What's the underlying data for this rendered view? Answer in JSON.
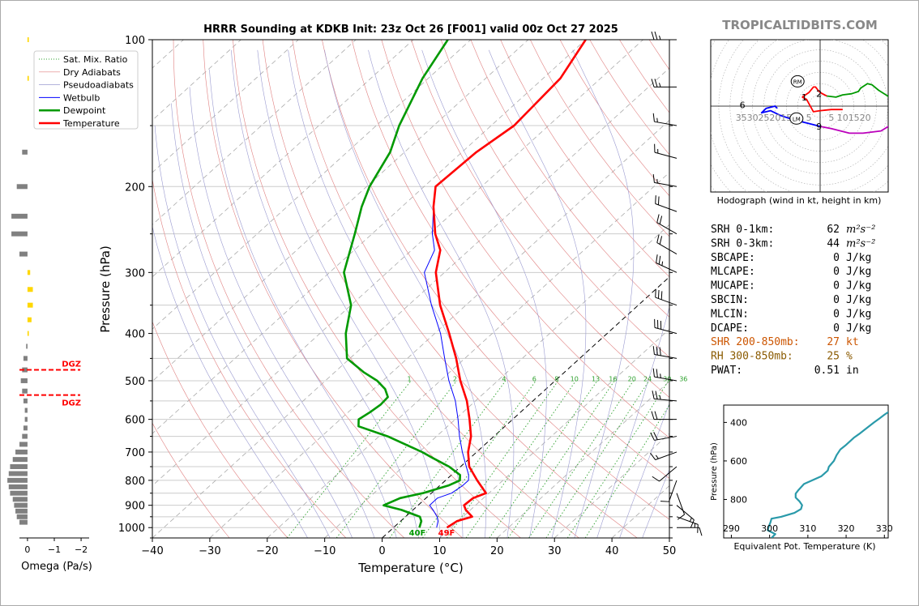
{
  "header": {
    "title": "HRRR Sounding at KDKB Init: 23z Oct 26 [F001] valid 00z Oct 27 2025",
    "watermark": "TROPICALTIDBITS.COM"
  },
  "legend": {
    "placement": "top-left",
    "entries": [
      {
        "label": "Sat. Mix. Ratio",
        "color": "#2ca02c",
        "style": "dotted"
      },
      {
        "label": "Dry Adiabats",
        "color": "#e08080",
        "style": "solid-thin"
      },
      {
        "label": "Pseudoadiabats",
        "color": "#9a9ad0",
        "style": "solid-thin"
      },
      {
        "label": "Wetbulb",
        "color": "#0000ff",
        "style": "solid"
      },
      {
        "label": "Dewpoint",
        "color": "#009900",
        "style": "solid-thick"
      },
      {
        "label": "Temperature",
        "color": "#ff0000",
        "style": "solid-thick"
      }
    ]
  },
  "colors": {
    "temperature": "#ff0000",
    "dewpoint": "#009900",
    "wetbulb": "#0000ff",
    "mixratio": "#2ca02c",
    "dry_adiabat": "#e08080",
    "moist_adiabat": "#9a9ad0",
    "hodo_0_1": "#ff0000",
    "hodo_1_3": "#ff0000",
    "hodo_3_6": "#009900",
    "hodo_6_9": "#bb00bb",
    "hodo_9_12": "#0000ff",
    "theta_e": "#2a9aaa",
    "omega_pos": "#808080",
    "omega_neg": "#ffd700",
    "shr_label": "#cc5500",
    "rh_label": "#8a5a00"
  },
  "chart_data": [
    {
      "type": "line",
      "subtype": "skew-t log-p",
      "title": "HRRR Sounding at KDKB Init: 23z Oct 26 [F001] valid 00z Oct 27 2025",
      "xlabel": "Temperature (°C)",
      "ylabel": "Pressure (hPa)",
      "xlim": [
        -40,
        50
      ],
      "ylim": [
        1050,
        100
      ],
      "y_scale": "log",
      "grid": true,
      "x_ticks": [
        "−40",
        "−30",
        "−20",
        "−10",
        "0",
        "10",
        "20",
        "30",
        "40",
        "50"
      ],
      "y_ticks": [
        "100",
        "200",
        "300",
        "400",
        "500",
        "600",
        "700",
        "800",
        "900",
        "1000"
      ],
      "mixing_ratio_labels": [
        "1",
        "2",
        "4",
        "6",
        "8",
        "10",
        "13",
        "16",
        "20",
        "24",
        "30",
        "36"
      ],
      "surface_labels": {
        "dewpoint": "40F",
        "temperature": "49F"
      },
      "series": [
        {
          "name": "Temperature",
          "pressure": [
            1000,
            970,
            950,
            920,
            900,
            870,
            850,
            800,
            750,
            700,
            650,
            600,
            550,
            500,
            450,
            400,
            350,
            300,
            270,
            250,
            220,
            200,
            170,
            150,
            120,
            100
          ],
          "temperature": [
            9.3,
            9.8,
            11.6,
            9.2,
            8.0,
            8.2,
            9.5,
            5.5,
            1.5,
            -1.5,
            -4.0,
            -7.5,
            -11.5,
            -16.5,
            -21.5,
            -27.5,
            -34.5,
            -41.5,
            -45.0,
            -49.0,
            -54.5,
            -58.0,
            -57.5,
            -56.0,
            -57.0,
            -60.0
          ]
        },
        {
          "name": "Dewpoint",
          "pressure": [
            1000,
            970,
            950,
            920,
            900,
            870,
            850,
            820,
            800,
            780,
            750,
            720,
            700,
            650,
            620,
            600,
            580,
            560,
            540,
            520,
            500,
            480,
            450,
            400,
            350,
            300,
            250,
            220,
            200,
            170,
            150,
            120,
            100
          ],
          "dewpoint": [
            4.5,
            3.6,
            2.5,
            -2.0,
            -6.0,
            -4.5,
            -1.5,
            1.5,
            2.5,
            1.5,
            -2.0,
            -6.5,
            -9.5,
            -18.5,
            -25.5,
            -26.8,
            -26.2,
            -25.8,
            -26.0,
            -28.0,
            -31.0,
            -35.0,
            -40.5,
            -45.5,
            -50.0,
            -57.5,
            -63.0,
            -67.0,
            -69.5,
            -72.5,
            -76.0,
            -81.0,
            -84.0
          ]
        },
        {
          "name": "Wetbulb",
          "pressure": [
            1000,
            970,
            950,
            920,
            900,
            870,
            850,
            820,
            800,
            780,
            750,
            700,
            650,
            600,
            550,
            500,
            450,
            400,
            350,
            300,
            270,
            250,
            220
          ],
          "temperature": [
            7.5,
            6.5,
            5.5,
            3.5,
            2.0,
            2.0,
            3.5,
            4.0,
            4.0,
            3.0,
            1.0,
            -2.5,
            -6.0,
            -9.5,
            -13.5,
            -18.5,
            -23.5,
            -29.0,
            -36.0,
            -43.5,
            -46.0,
            -49.5,
            -54.5
          ]
        }
      ],
      "wind_barbs": [
        {
          "pressure": 1000,
          "dir": 90,
          "spd": 10
        },
        {
          "pressure": 950,
          "dir": 110,
          "spd": 15
        },
        {
          "pressure": 900,
          "dir": 130,
          "spd": 15
        },
        {
          "pressure": 850,
          "dir": 160,
          "spd": 10
        },
        {
          "pressure": 800,
          "dir": 200,
          "spd": 10
        },
        {
          "pressure": 750,
          "dir": 230,
          "spd": 10
        },
        {
          "pressure": 700,
          "dir": 250,
          "spd": 15
        },
        {
          "pressure": 650,
          "dir": 260,
          "spd": 20
        },
        {
          "pressure": 600,
          "dir": 270,
          "spd": 20
        },
        {
          "pressure": 550,
          "dir": 275,
          "spd": 25
        },
        {
          "pressure": 500,
          "dir": 280,
          "spd": 25
        },
        {
          "pressure": 450,
          "dir": 280,
          "spd": 30
        },
        {
          "pressure": 400,
          "dir": 285,
          "spd": 30
        },
        {
          "pressure": 350,
          "dir": 290,
          "spd": 30
        },
        {
          "pressure": 300,
          "dir": 295,
          "spd": 25
        },
        {
          "pressure": 275,
          "dir": 300,
          "spd": 20
        },
        {
          "pressure": 250,
          "dir": 300,
          "spd": 20
        },
        {
          "pressure": 225,
          "dir": 290,
          "spd": 20
        },
        {
          "pressure": 200,
          "dir": 280,
          "spd": 15
        },
        {
          "pressure": 175,
          "dir": 285,
          "spd": 15
        },
        {
          "pressure": 150,
          "dir": 280,
          "spd": 15
        },
        {
          "pressure": 125,
          "dir": 270,
          "spd": 25
        },
        {
          "pressure": 100,
          "dir": 270,
          "spd": 25
        }
      ]
    },
    {
      "type": "bar",
      "subtype": "omega-profile",
      "xlabel": "Omega (Pa/s)",
      "x_ticks": [
        "0",
        "−1",
        "−2"
      ],
      "xlim": [
        0.3,
        -2.3
      ],
      "dgz_label": "DGZ",
      "dgz_pressures": [
        475,
        535
      ],
      "values": [
        {
          "pressure": 100,
          "omega": -0.05
        },
        {
          "pressure": 120,
          "omega": -0.05
        },
        {
          "pressure": 170,
          "omega": 0.2
        },
        {
          "pressure": 200,
          "omega": 0.4
        },
        {
          "pressure": 230,
          "omega": 0.6
        },
        {
          "pressure": 250,
          "omega": 0.6
        },
        {
          "pressure": 275,
          "omega": 0.3
        },
        {
          "pressure": 300,
          "omega": -0.1
        },
        {
          "pressure": 325,
          "omega": -0.2
        },
        {
          "pressure": 350,
          "omega": -0.2
        },
        {
          "pressure": 375,
          "omega": -0.15
        },
        {
          "pressure": 400,
          "omega": -0.05
        },
        {
          "pressure": 425,
          "omega": 0.05
        },
        {
          "pressure": 450,
          "omega": 0.15
        },
        {
          "pressure": 475,
          "omega": 0.2
        },
        {
          "pressure": 500,
          "omega": 0.25
        },
        {
          "pressure": 525,
          "omega": 0.2
        },
        {
          "pressure": 550,
          "omega": 0.15
        },
        {
          "pressure": 575,
          "omega": 0.1
        },
        {
          "pressure": 600,
          "omega": 0.1
        },
        {
          "pressure": 625,
          "omega": 0.15
        },
        {
          "pressure": 650,
          "omega": 0.2
        },
        {
          "pressure": 675,
          "omega": 0.3
        },
        {
          "pressure": 700,
          "omega": 0.45
        },
        {
          "pressure": 725,
          "omega": 0.55
        },
        {
          "pressure": 750,
          "omega": 0.65
        },
        {
          "pressure": 775,
          "omega": 0.7
        },
        {
          "pressure": 800,
          "omega": 0.75
        },
        {
          "pressure": 825,
          "omega": 0.7
        },
        {
          "pressure": 850,
          "omega": 0.65
        },
        {
          "pressure": 875,
          "omega": 0.55
        },
        {
          "pressure": 900,
          "omega": 0.5
        },
        {
          "pressure": 925,
          "omega": 0.45
        },
        {
          "pressure": 950,
          "omega": 0.4
        },
        {
          "pressure": 975,
          "omega": 0.3
        }
      ]
    },
    {
      "type": "line",
      "subtype": "hodograph",
      "xlabel": "Hodograph (wind in kt, height in km)",
      "ring_labels": [
        "35",
        "30",
        "25",
        "20",
        "15",
        "10",
        "5",
        "5",
        "10",
        "15",
        "20"
      ],
      "markers": [
        {
          "label": "RM",
          "u": 10,
          "v": 11
        },
        {
          "label": "LM",
          "u": 10.5,
          "v": -5.5
        }
      ],
      "height_labels": [
        {
          "label": "1",
          "u": 7,
          "v": 4
        },
        {
          "label": "2",
          "u": 0.5,
          "v": 5.5
        },
        {
          "label": "6",
          "u": 34.5,
          "v": 0.5
        },
        {
          "label": "9",
          "u": 0.5,
          "v": -9
        }
      ],
      "series": [
        {
          "name": "0-1 km",
          "color_key": "hodo_0_1",
          "u": [
            -10,
            -5,
            0,
            3,
            6,
            8
          ],
          "v": [
            -1.5,
            -1.5,
            -2,
            -2.5,
            3,
            4
          ]
        },
        {
          "name": "1-3 km",
          "color_key": "hodo_1_3",
          "u": [
            8,
            5,
            3,
            2,
            0.5,
            -1,
            -3
          ],
          "v": [
            4,
            6,
            8.5,
            8.5,
            6.5,
            5.5,
            4.5
          ]
        },
        {
          "name": "3-6 km",
          "color_key": "hodo_3_6",
          "u": [
            -3,
            -7,
            -10,
            -14,
            -17,
            -18,
            -21,
            -23,
            -26,
            -30,
            -35
          ],
          "v": [
            4.5,
            4,
            5,
            5.5,
            6.5,
            8,
            10,
            9.5,
            7,
            4.5,
            1
          ]
        },
        {
          "name": "6-9 km",
          "color_key": "hodo_6_9",
          "u": [
            -35,
            -37,
            -36,
            -32,
            -27,
            -19,
            -13,
            -5,
            0
          ],
          "v": [
            1,
            -1.5,
            -5,
            -8,
            -11,
            -12,
            -12,
            -10,
            -9
          ]
        },
        {
          "name": "9-12 km",
          "color_key": "hodo_9_12",
          "u": [
            0,
            6,
            12,
            18,
            22,
            26,
            24,
            20,
            19
          ],
          "v": [
            -9,
            -7.5,
            -6,
            -4,
            -2,
            -3,
            -1,
            0,
            -1
          ]
        }
      ]
    },
    {
      "type": "line",
      "subtype": "theta-e profile",
      "xlabel": "Equivalent Pot. Temperature (K)",
      "ylabel": "Pressure (hPa)",
      "xlim": [
        288,
        331
      ],
      "ylim": [
        1000,
        310
      ],
      "x_ticks": [
        "290",
        "300",
        "310",
        "320",
        "330"
      ],
      "y_ticks": [
        "400",
        "600",
        "800"
      ],
      "pressure": [
        1000,
        980,
        970,
        960,
        940,
        920,
        900,
        890,
        870,
        850,
        830,
        810,
        790,
        770,
        750,
        720,
        700,
        680,
        650,
        630,
        600,
        570,
        540,
        520,
        500,
        480,
        460,
        440,
        420,
        400,
        380,
        360,
        340,
        320,
        310
      ],
      "theta_e": [
        300.5,
        301.5,
        300.5,
        299.5,
        299.8,
        300.2,
        300.5,
        303,
        306.5,
        308.2,
        308.5,
        307.8,
        306.8,
        306.8,
        307.6,
        309,
        311.2,
        313.5,
        315.2,
        315.5,
        316.8,
        317.5,
        318.5,
        319.8,
        320.9,
        322,
        323.4,
        324.7,
        326,
        327.3,
        328.7,
        330,
        331.5,
        333,
        333.5
      ]
    }
  ],
  "indices": [
    {
      "label": "SRH 0-1km:",
      "value": "62",
      "unit": "m²s⁻²",
      "color": "#000000"
    },
    {
      "label": "SRH 0-3km:",
      "value": "44",
      "unit": "m²s⁻²",
      "color": "#000000"
    },
    {
      "label": "SBCAPE:",
      "value": "0",
      "unit": "J/kg",
      "color": "#000000"
    },
    {
      "label": "MLCAPE:",
      "value": "0",
      "unit": "J/kg",
      "color": "#000000"
    },
    {
      "label": "MUCAPE:",
      "value": "0",
      "unit": "J/kg",
      "color": "#000000"
    },
    {
      "label": "SBCIN:",
      "value": "0",
      "unit": "J/kg",
      "color": "#000000"
    },
    {
      "label": "MLCIN:",
      "value": "0",
      "unit": "J/kg",
      "color": "#000000"
    },
    {
      "label": "DCAPE:",
      "value": "0",
      "unit": "J/kg",
      "color": "#000000"
    },
    {
      "label": "SHR 200-850mb:",
      "value": "27",
      "unit": "kt",
      "color": "#cc5500"
    },
    {
      "label": "RH 300-850mb:",
      "value": "25",
      "unit": "%",
      "color": "#8a5a00"
    },
    {
      "label": "PWAT:",
      "value": "0.51",
      "unit": "in",
      "color": "#000000"
    }
  ]
}
